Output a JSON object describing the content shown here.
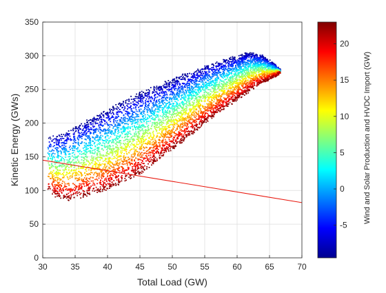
{
  "chart_data": {
    "type": "scatter",
    "title": "",
    "xlabel": "Total Load (GW)",
    "ylabel": "Kinetic Energy (GWs)",
    "xlim": [
      30,
      70
    ],
    "ylim": [
      0,
      350
    ],
    "xticks": [
      30,
      35,
      40,
      45,
      50,
      55,
      60,
      65,
      70
    ],
    "yticks": [
      0,
      50,
      100,
      150,
      200,
      250,
      300,
      350
    ],
    "grid": true,
    "colormap": "jet",
    "colorbar": {
      "label": "Wind and Solar Production and HVDC Import (GW)",
      "range": [
        -9.5,
        23
      ],
      "ticks": [
        -5,
        0,
        5,
        10,
        15,
        20
      ]
    },
    "point_cloud": {
      "description_of_shape": "dense band of points; upper edge color ~ -9 GW, lower edge ~ +23 GW",
      "x_range": [
        30.8,
        66.7
      ],
      "upper_edge": [
        [
          31.5,
          180
        ],
        [
          33,
          185
        ],
        [
          35,
          195
        ],
        [
          40,
          220
        ],
        [
          45,
          245
        ],
        [
          50,
          265
        ],
        [
          55,
          285
        ],
        [
          60,
          300
        ],
        [
          62,
          305
        ],
        [
          64,
          300
        ],
        [
          66,
          285
        ],
        [
          66.7,
          278
        ]
      ],
      "lower_edge": [
        [
          31,
          100
        ],
        [
          32,
          90
        ],
        [
          34,
          86
        ],
        [
          36,
          90
        ],
        [
          40,
          100
        ],
        [
          45,
          125
        ],
        [
          50,
          160
        ],
        [
          55,
          200
        ],
        [
          60,
          235
        ],
        [
          63,
          255
        ],
        [
          66,
          270
        ],
        [
          66.7,
          275
        ]
      ],
      "point_count": 7000
    },
    "reference_line": {
      "color": "#e8160c",
      "points": [
        [
          30,
          145
        ],
        [
          70,
          82
        ]
      ]
    },
    "colors": {
      "axes": "#262626",
      "grid": "#dcdcdc"
    }
  }
}
